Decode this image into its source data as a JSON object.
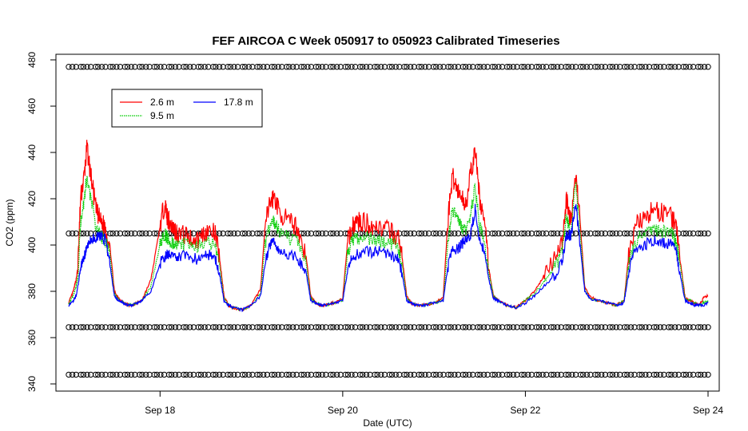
{
  "chart_data": {
    "type": "line",
    "title": "FEF AIRCOA C  Week 050917 to 050923  Calibrated Timeseries",
    "xlabel": "Date (UTC)",
    "ylabel": "CO2 (ppm)",
    "xlim_days": [
      17.0,
      24.0
    ],
    "ylim": [
      340,
      480
    ],
    "x_ticks": [
      {
        "value": 18,
        "label": "Sep 18"
      },
      {
        "value": 20,
        "label": "Sep 20"
      },
      {
        "value": 22,
        "label": "Sep 22"
      },
      {
        "value": 24,
        "label": "Sep 24"
      }
    ],
    "y_ticks": [
      340,
      360,
      380,
      400,
      420,
      440,
      460,
      480
    ],
    "legend": {
      "position": "top-left",
      "entries": [
        {
          "label": "2.6 m",
          "color": "#ff0000",
          "style": "solid"
        },
        {
          "label": "9.5 m",
          "color": "#00cc00",
          "style": "dotted"
        },
        {
          "label": "17.8 m",
          "color": "#0000ff",
          "style": "solid"
        }
      ]
    },
    "series": [
      {
        "name": "2.6 m",
        "color": "#ff0000",
        "x": [
          17.0,
          17.05,
          17.08,
          17.1,
          17.13,
          17.17,
          17.2,
          17.25,
          17.3,
          17.35,
          17.4,
          17.45,
          17.5,
          17.55,
          17.6,
          17.65,
          17.7,
          17.75,
          17.8,
          17.9,
          18.0,
          18.05,
          18.08,
          18.1,
          18.15,
          18.2,
          18.3,
          18.4,
          18.5,
          18.6,
          18.65,
          18.7,
          18.75,
          18.8,
          18.9,
          19.0,
          19.1,
          19.15,
          19.2,
          19.25,
          19.3,
          19.4,
          19.5,
          19.6,
          19.65,
          19.7,
          19.75,
          19.8,
          19.9,
          20.0,
          20.05,
          20.1,
          20.15,
          20.2,
          20.3,
          20.4,
          20.5,
          20.6,
          20.65,
          20.7,
          20.75,
          20.8,
          20.9,
          21.0,
          21.1,
          21.15,
          21.2,
          21.25,
          21.3,
          21.35,
          21.4,
          21.45,
          21.5,
          21.55,
          21.6,
          21.65,
          21.7,
          21.8,
          21.9,
          22.0,
          22.1,
          22.2,
          22.3,
          22.4,
          22.45,
          22.5,
          22.55,
          22.6,
          22.65,
          22.7,
          22.8,
          22.9,
          23.0,
          23.08,
          23.13,
          23.2,
          23.3,
          23.4,
          23.5,
          23.6,
          23.65,
          23.7,
          23.75,
          23.8,
          23.85,
          23.9,
          23.95,
          24.0
        ],
        "values": [
          375,
          380,
          385,
          390,
          420,
          430,
          442,
          428,
          415,
          410,
          408,
          400,
          380,
          377,
          375,
          374,
          374,
          375,
          376,
          385,
          408,
          418,
          412,
          410,
          407,
          405,
          404,
          402,
          406,
          405,
          395,
          378,
          374,
          373,
          372,
          374,
          381,
          408,
          418,
          421,
          415,
          410,
          408,
          395,
          378,
          375,
          374,
          374,
          375,
          377,
          400,
          408,
          410,
          410,
          409,
          408,
          406,
          404,
          395,
          378,
          375,
          374,
          374,
          375,
          377,
          410,
          430,
          425,
          420,
          418,
          430,
          441,
          420,
          410,
          390,
          378,
          376,
          374,
          373,
          376,
          380,
          386,
          392,
          400,
          420,
          410,
          430,
          410,
          382,
          378,
          376,
          375,
          374,
          376,
          395,
          408,
          412,
          415,
          414,
          412,
          408,
          392,
          377,
          376,
          375,
          374,
          377,
          378
        ]
      },
      {
        "name": "9.5 m",
        "color": "#00cc00",
        "x": [
          17.0,
          17.05,
          17.08,
          17.1,
          17.13,
          17.17,
          17.2,
          17.25,
          17.3,
          17.35,
          17.4,
          17.45,
          17.5,
          17.55,
          17.6,
          17.65,
          17.7,
          17.75,
          17.8,
          17.9,
          18.0,
          18.05,
          18.08,
          18.1,
          18.15,
          18.2,
          18.3,
          18.4,
          18.5,
          18.6,
          18.65,
          18.7,
          18.75,
          18.8,
          18.9,
          19.0,
          19.1,
          19.15,
          19.2,
          19.25,
          19.3,
          19.4,
          19.5,
          19.6,
          19.65,
          19.7,
          19.75,
          19.8,
          19.9,
          20.0,
          20.05,
          20.1,
          20.15,
          20.2,
          20.3,
          20.4,
          20.5,
          20.6,
          20.65,
          20.7,
          20.75,
          20.8,
          20.9,
          21.0,
          21.1,
          21.15,
          21.2,
          21.25,
          21.3,
          21.35,
          21.4,
          21.45,
          21.5,
          21.55,
          21.6,
          21.65,
          21.7,
          21.8,
          21.9,
          22.0,
          22.1,
          22.2,
          22.3,
          22.4,
          22.45,
          22.5,
          22.55,
          22.6,
          22.65,
          22.7,
          22.8,
          22.9,
          23.0,
          23.08,
          23.13,
          23.2,
          23.3,
          23.4,
          23.5,
          23.6,
          23.65,
          23.7,
          23.75,
          23.8,
          23.85,
          23.9,
          23.95,
          24.0
        ],
        "values": [
          375,
          378,
          382,
          386,
          410,
          420,
          430,
          418,
          408,
          404,
          402,
          396,
          379,
          376,
          375,
          374,
          374,
          375,
          376,
          382,
          400,
          405,
          403,
          402,
          401,
          400,
          400,
          399,
          401,
          400,
          392,
          377,
          374,
          373,
          372,
          374,
          379,
          400,
          408,
          410,
          406,
          403,
          402,
          392,
          377,
          375,
          374,
          374,
          375,
          376,
          395,
          402,
          403,
          403,
          403,
          402,
          401,
          400,
          392,
          377,
          375,
          374,
          374,
          375,
          376,
          400,
          415,
          412,
          408,
          406,
          413,
          425,
          408,
          402,
          388,
          378,
          376,
          374,
          373,
          376,
          379,
          384,
          389,
          396,
          412,
          405,
          428,
          405,
          381,
          377,
          376,
          375,
          374,
          376,
          392,
          402,
          405,
          406,
          406,
          405,
          402,
          390,
          377,
          376,
          375,
          374,
          375,
          376
        ]
      },
      {
        "name": "17.8 m",
        "color": "#0000ff",
        "x": [
          17.0,
          17.05,
          17.08,
          17.1,
          17.13,
          17.17,
          17.2,
          17.25,
          17.3,
          17.35,
          17.4,
          17.45,
          17.5,
          17.55,
          17.6,
          17.65,
          17.7,
          17.75,
          17.8,
          17.9,
          18.0,
          18.05,
          18.08,
          18.1,
          18.15,
          18.2,
          18.3,
          18.4,
          18.5,
          18.6,
          18.65,
          18.7,
          18.75,
          18.8,
          18.9,
          19.0,
          19.1,
          19.15,
          19.2,
          19.25,
          19.3,
          19.4,
          19.5,
          19.6,
          19.65,
          19.7,
          19.75,
          19.8,
          19.9,
          20.0,
          20.05,
          20.1,
          20.15,
          20.2,
          20.3,
          20.4,
          20.5,
          20.6,
          20.65,
          20.7,
          20.75,
          20.8,
          20.9,
          21.0,
          21.1,
          21.15,
          21.2,
          21.25,
          21.3,
          21.35,
          21.4,
          21.45,
          21.5,
          21.55,
          21.6,
          21.65,
          21.7,
          21.8,
          21.9,
          22.0,
          22.1,
          22.2,
          22.3,
          22.4,
          22.45,
          22.5,
          22.55,
          22.6,
          22.65,
          22.7,
          22.8,
          22.9,
          23.0,
          23.08,
          23.13,
          23.2,
          23.3,
          23.4,
          23.5,
          23.6,
          23.65,
          23.7,
          23.75,
          23.8,
          23.85,
          23.9,
          23.95,
          24.0
        ],
        "values": [
          374,
          376,
          378,
          382,
          390,
          395,
          400,
          402,
          403,
          404,
          402,
          392,
          378,
          376,
          375,
          374,
          374,
          375,
          376,
          380,
          392,
          395,
          396,
          396,
          396,
          395,
          395,
          394,
          396,
          395,
          388,
          376,
          374,
          373,
          372,
          374,
          378,
          392,
          400,
          402,
          398,
          396,
          395,
          388,
          376,
          375,
          374,
          374,
          375,
          376,
          388,
          395,
          396,
          397,
          397,
          397,
          396,
          395,
          388,
          376,
          375,
          374,
          374,
          375,
          376,
          390,
          398,
          398,
          400,
          402,
          404,
          416,
          402,
          398,
          385,
          377,
          376,
          374,
          373,
          375,
          378,
          382,
          386,
          392,
          405,
          404,
          418,
          400,
          380,
          377,
          376,
          375,
          374,
          375,
          388,
          398,
          400,
          402,
          401,
          400,
          398,
          386,
          376,
          375,
          374,
          374,
          374,
          375
        ]
      },
      {
        "name": "",
        "style": "open-circles",
        "color": "#000000",
        "x_range": [
          17.0,
          24.0
        ],
        "levels": [
          344,
          364.5,
          405,
          477
        ]
      }
    ]
  }
}
